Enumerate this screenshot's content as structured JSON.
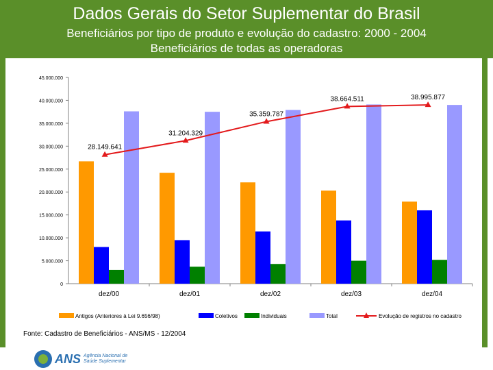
{
  "header": {
    "title": "Dados Gerais do Setor Suplementar do Brasil",
    "subtitle": "Beneficiários por tipo de produto e evolução do cadastro: 2000 - 2004",
    "subtitle2": "Beneficiários de todas as operadoras"
  },
  "footer": {
    "source": "Fonte: Cadastro de Beneficiários - ANS/MS - 12/2004",
    "logo_text": "ANS",
    "logo_sub_1": "Agência Nacional de",
    "logo_sub_2": "Saúde Suplementar"
  },
  "chart_data": {
    "type": "bar",
    "categories": [
      "dez/00",
      "dez/01",
      "dez/02",
      "dez/03",
      "dez/04"
    ],
    "ylim": [
      0,
      45000000
    ],
    "ytick_labels": [
      "0",
      "5.000.000",
      "10.000.000",
      "15.000.000",
      "20.000.000",
      "25.000.000",
      "30.000.000",
      "35.000.000",
      "40.000.000",
      "45.000.000"
    ],
    "series": [
      {
        "name": "Antigos (Anteriores à Lei 9.656/98)",
        "kind": "bar",
        "color": "#ff9900",
        "values": [
          26700000,
          24200000,
          22100000,
          20300000,
          17900000
        ]
      },
      {
        "name": "Coletivos",
        "kind": "bar",
        "color": "#0000ff",
        "values": [
          8000000,
          9500000,
          11400000,
          13800000,
          16000000
        ]
      },
      {
        "name": "Individuais",
        "kind": "bar",
        "color": "#008000",
        "values": [
          3000000,
          3700000,
          4300000,
          5000000,
          5200000
        ]
      },
      {
        "name": "Total",
        "kind": "bar",
        "color": "#9999ff",
        "values": [
          37600000,
          37500000,
          37900000,
          39100000,
          39000000
        ]
      },
      {
        "name": "Evolução de registros no cadastro",
        "kind": "line",
        "color": "#e31a1c",
        "values": [
          28149641,
          31204329,
          35359787,
          38664511,
          38995877
        ]
      }
    ],
    "line_labels": [
      "28.149.641",
      "31.204.329",
      "35.359.787",
      "38.664.511",
      "38.995.877"
    ],
    "legend": "bottom"
  }
}
